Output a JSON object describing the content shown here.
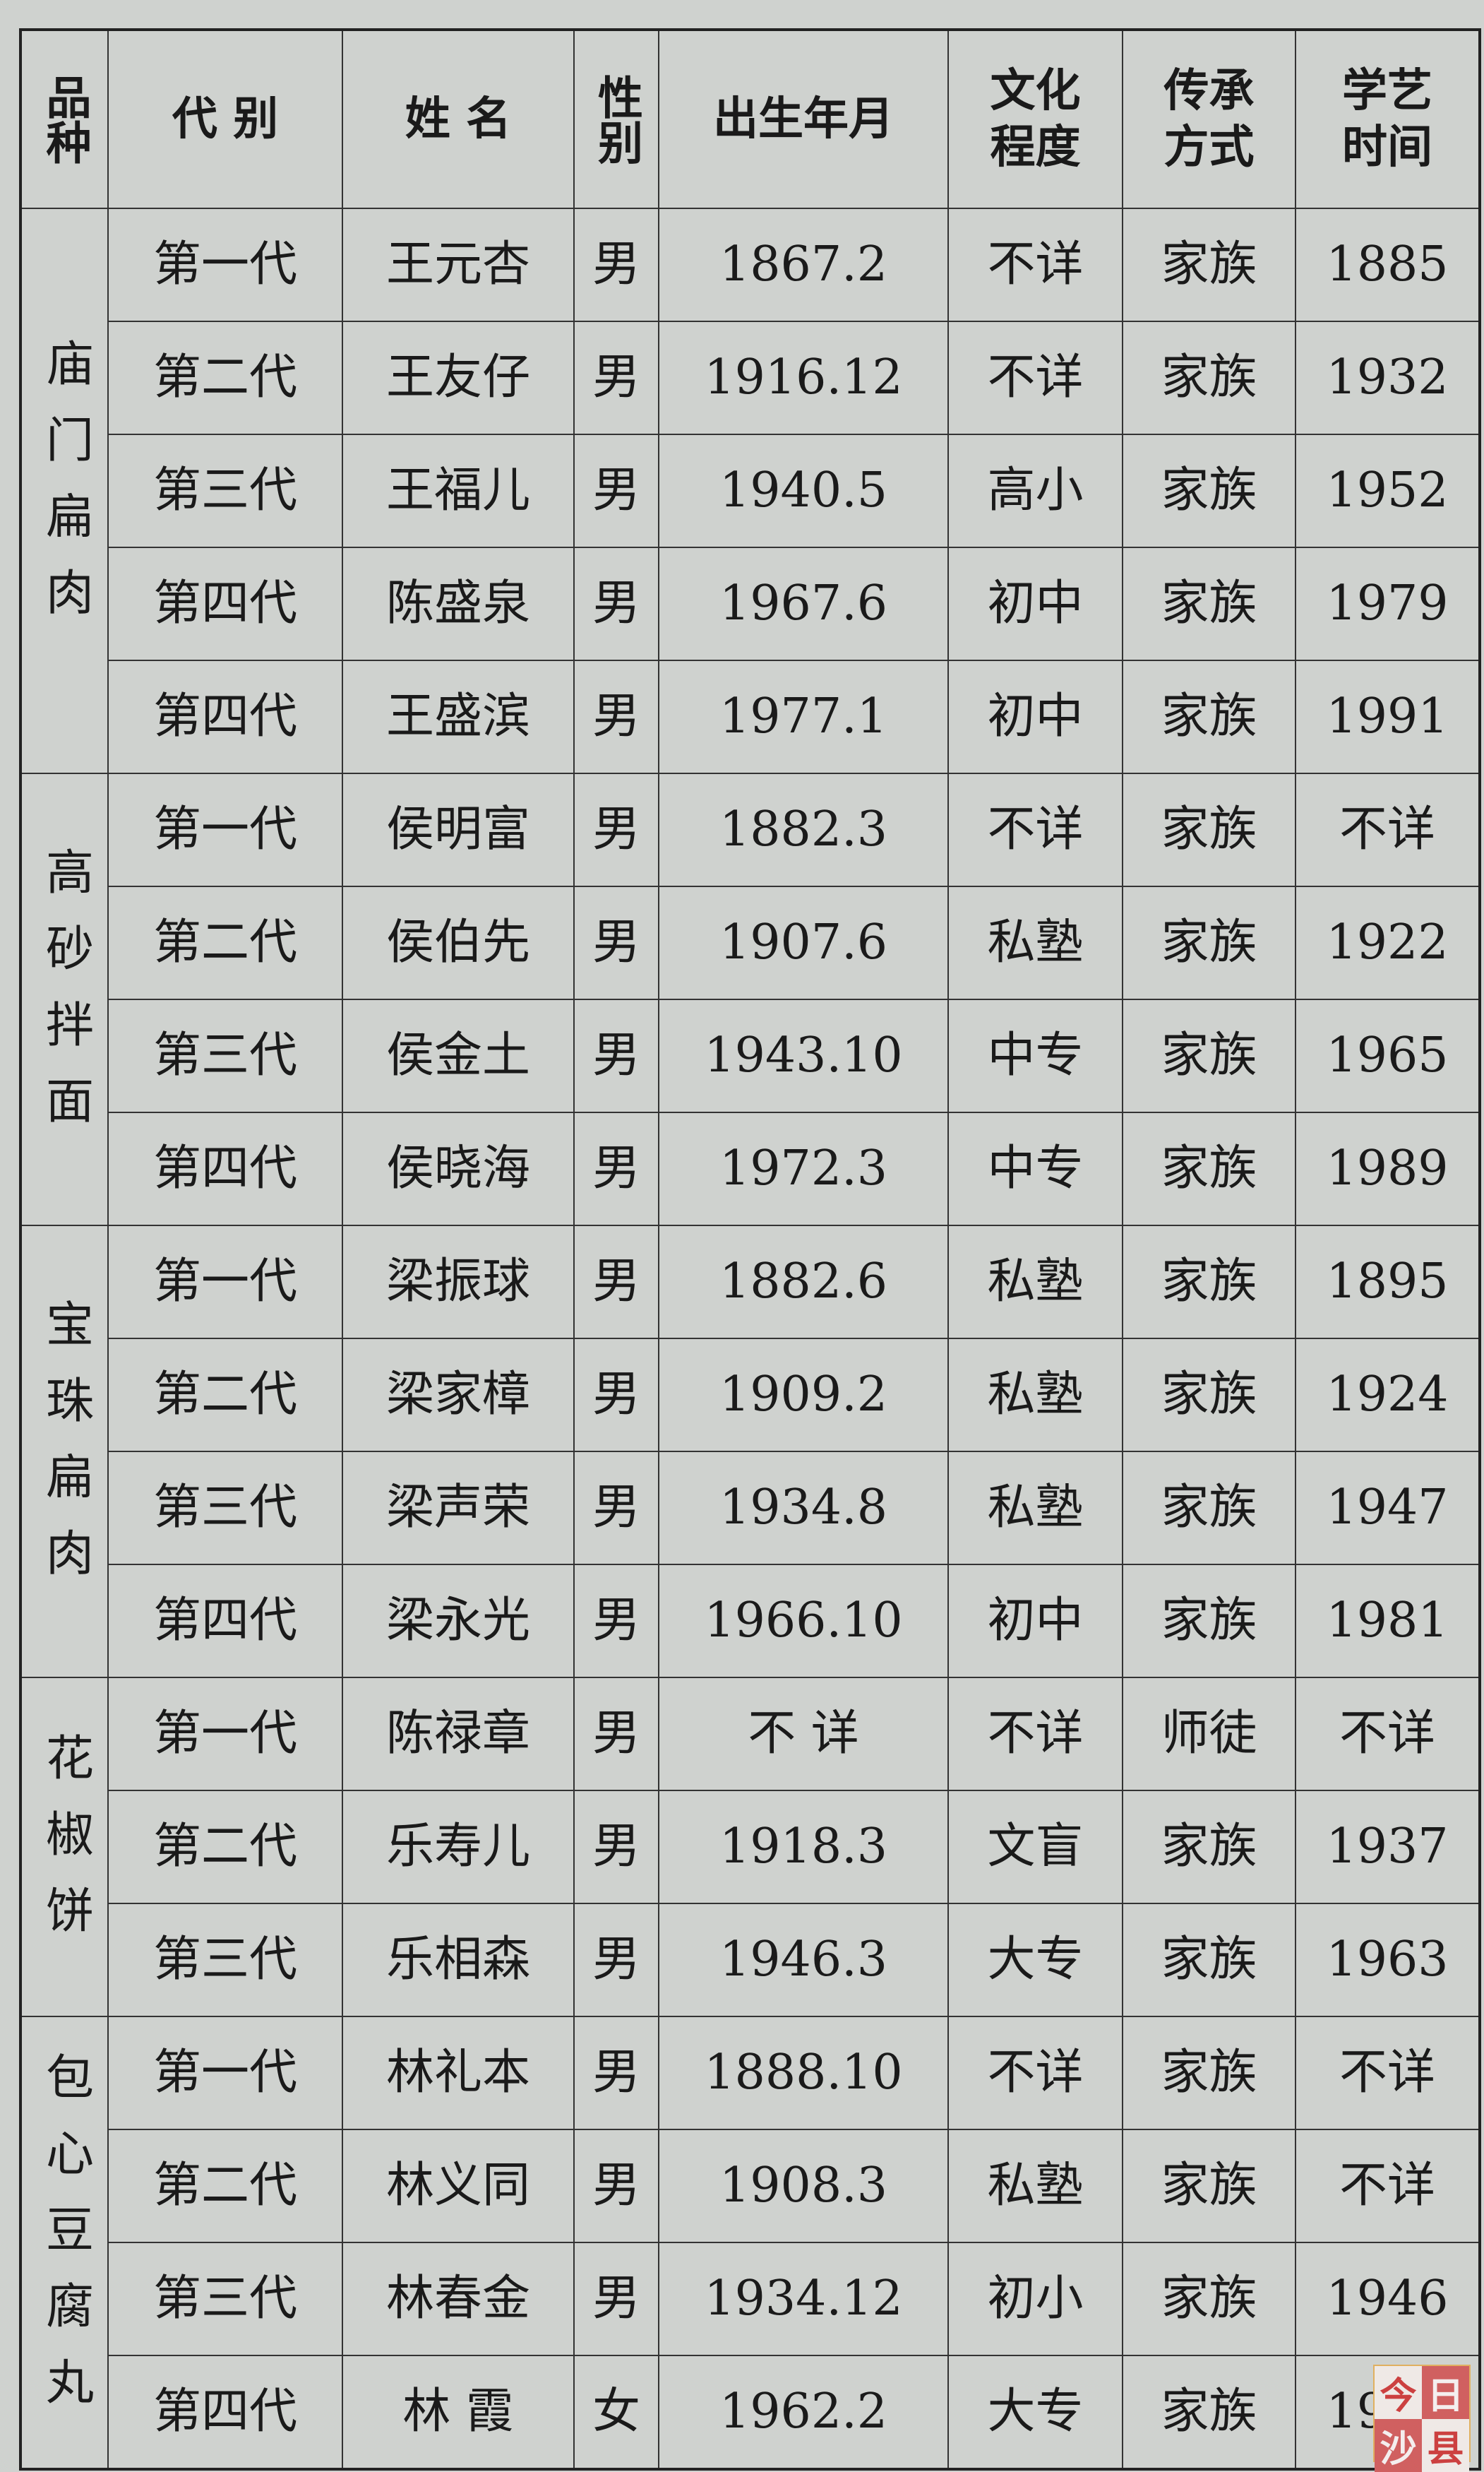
{
  "headers": [
    "品种",
    "代 别",
    "姓 名",
    "性别",
    "出生年月",
    "文化程度",
    "传承方式",
    "学艺时间"
  ],
  "groups": [
    {
      "category": "庙门扁肉",
      "rows": [
        [
          "第一代",
          "王元杏",
          "男",
          "1867.2",
          "不详",
          "家族",
          "1885"
        ],
        [
          "第二代",
          "王友仔",
          "男",
          "1916.12",
          "不详",
          "家族",
          "1932"
        ],
        [
          "第三代",
          "王福儿",
          "男",
          "1940.5",
          "高小",
          "家族",
          "1952"
        ],
        [
          "第四代",
          "陈盛泉",
          "男",
          "1967.6",
          "初中",
          "家族",
          "1979"
        ],
        [
          "第四代",
          "王盛滨",
          "男",
          "1977.1",
          "初中",
          "家族",
          "1991"
        ]
      ]
    },
    {
      "category": "高砂拌面",
      "rows": [
        [
          "第一代",
          "侯明富",
          "男",
          "1882.3",
          "不详",
          "家族",
          "不详"
        ],
        [
          "第二代",
          "侯伯先",
          "男",
          "1907.6",
          "私塾",
          "家族",
          "1922"
        ],
        [
          "第三代",
          "侯金土",
          "男",
          "1943.10",
          "中专",
          "家族",
          "1965"
        ],
        [
          "第四代",
          "侯晓海",
          "男",
          "1972.3",
          "中专",
          "家族",
          "1989"
        ]
      ]
    },
    {
      "category": "宝珠扁肉",
      "rows": [
        [
          "第一代",
          "梁振球",
          "男",
          "1882.6",
          "私塾",
          "家族",
          "1895"
        ],
        [
          "第二代",
          "梁家樟",
          "男",
          "1909.2",
          "私塾",
          "家族",
          "1924"
        ],
        [
          "第三代",
          "梁声荣",
          "男",
          "1934.8",
          "私塾",
          "家族",
          "1947"
        ],
        [
          "第四代",
          "梁永光",
          "男",
          "1966.10",
          "初中",
          "家族",
          "1981"
        ]
      ]
    },
    {
      "category": "花椒饼",
      "rows": [
        [
          "第一代",
          "陈禄章",
          "男",
          "不 详",
          "不详",
          "师徒",
          "不详"
        ],
        [
          "第二代",
          "乐寿儿",
          "男",
          "1918.3",
          "文盲",
          "家族",
          "1937"
        ],
        [
          "第三代",
          "乐相森",
          "男",
          "1946.3",
          "大专",
          "家族",
          "1963"
        ]
      ]
    },
    {
      "category": "包心豆腐丸",
      "rows": [
        [
          "第一代",
          "林礼本",
          "男",
          "1888.10",
          "不详",
          "家族",
          "不详"
        ],
        [
          "第二代",
          "林义同",
          "男",
          "1908.3",
          "私塾",
          "家族",
          "不详"
        ],
        [
          "第三代",
          "林春金",
          "男",
          "1934.12",
          "初小",
          "家族",
          "1946"
        ],
        [
          "第四代",
          "林 霞",
          "女",
          "1962.2",
          "大专",
          "家族",
          "1980"
        ]
      ]
    }
  ],
  "watermark": [
    "今",
    "日",
    "沙",
    "县"
  ]
}
